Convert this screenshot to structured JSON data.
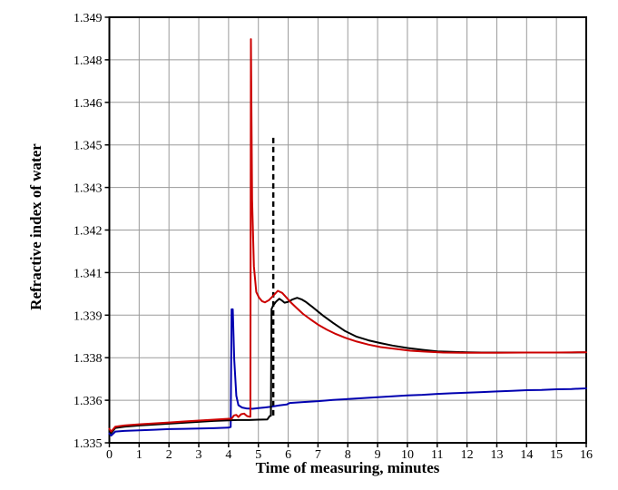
{
  "figure": {
    "background": "#ffffff"
  },
  "chart_data": {
    "type": "line",
    "title": "",
    "xlabel": "Time of measuring, minutes",
    "ylabel": "Refractive index of water",
    "xlim": [
      0,
      16
    ],
    "ylim": [
      1.335,
      1.349
    ],
    "grid": true,
    "legend": "none",
    "grid_color": "#9a9a9a",
    "frame_color": "#000000",
    "x_ticks": [
      "0",
      "1",
      "2",
      "3",
      "4",
      "5",
      "6",
      "7",
      "8",
      "9",
      "10",
      "11",
      "12",
      "13",
      "14",
      "15",
      "16"
    ],
    "y_ticks": [
      {
        "value": 1.335,
        "label": "1.335"
      },
      {
        "value": 1.3364,
        "label": "1.336"
      },
      {
        "value": 1.3378,
        "label": "1.338"
      },
      {
        "value": 1.3392,
        "label": "1.339"
      },
      {
        "value": 1.3406,
        "label": "1.341"
      },
      {
        "value": 1.342,
        "label": "1.342"
      },
      {
        "value": 1.3434,
        "label": "1.343"
      },
      {
        "value": 1.3448,
        "label": "1.345"
      },
      {
        "value": 1.3462,
        "label": "1.346"
      },
      {
        "value": 1.3476,
        "label": "1.348"
      },
      {
        "value": 1.349,
        "label": "1.349"
      }
    ],
    "annotations": [
      {
        "type": "vline",
        "style": "dashed",
        "x": 5.5,
        "y_from": 1.3359,
        "y_to": 1.3451,
        "color": "#000000"
      }
    ],
    "series": [
      {
        "name": "blue-curve",
        "color": "#0000b0",
        "points": [
          [
            0,
            1.33531
          ],
          [
            0.06,
            1.33524
          ],
          [
            0.2,
            1.33537
          ],
          [
            0.5,
            1.33539
          ],
          [
            1,
            1.33541
          ],
          [
            1.5,
            1.33543
          ],
          [
            2,
            1.33545
          ],
          [
            2.5,
            1.33546
          ],
          [
            3,
            1.33547
          ],
          [
            3.5,
            1.33548
          ],
          [
            4,
            1.3355
          ],
          [
            4.07,
            1.33552
          ],
          [
            4.1,
            1.33939
          ],
          [
            4.14,
            1.33939
          ],
          [
            4.19,
            1.33775
          ],
          [
            4.26,
            1.33655
          ],
          [
            4.33,
            1.33624
          ],
          [
            4.45,
            1.33616
          ],
          [
            4.6,
            1.33613
          ],
          [
            4.8,
            1.33612
          ],
          [
            5,
            1.33614
          ],
          [
            5.2,
            1.33616
          ],
          [
            5.45,
            1.33619
          ],
          [
            5.7,
            1.33623
          ],
          [
            5.95,
            1.33626
          ],
          [
            6.05,
            1.33631
          ],
          [
            6.5,
            1.33634
          ],
          [
            7,
            1.33637
          ],
          [
            7.5,
            1.33641
          ],
          [
            8,
            1.33644
          ],
          [
            8.5,
            1.33647
          ],
          [
            9,
            1.3365
          ],
          [
            9.5,
            1.33653
          ],
          [
            10,
            1.33656
          ],
          [
            10.5,
            1.33658
          ],
          [
            11,
            1.33661
          ],
          [
            11.5,
            1.33663
          ],
          [
            12,
            1.33665
          ],
          [
            12.5,
            1.33667
          ],
          [
            13,
            1.33669
          ],
          [
            13.5,
            1.33671
          ],
          [
            14,
            1.33673
          ],
          [
            14.5,
            1.33674
          ],
          [
            15,
            1.33676
          ],
          [
            15.5,
            1.33677
          ],
          [
            16,
            1.33679
          ]
        ]
      },
      {
        "name": "black-curve",
        "color": "#000000",
        "points": [
          [
            0,
            1.3354
          ],
          [
            0.06,
            1.33532
          ],
          [
            0.2,
            1.33549
          ],
          [
            0.5,
            1.33553
          ],
          [
            1,
            1.33557
          ],
          [
            1.5,
            1.3356
          ],
          [
            2,
            1.33563
          ],
          [
            2.5,
            1.33566
          ],
          [
            3,
            1.33569
          ],
          [
            3.5,
            1.33572
          ],
          [
            4,
            1.33574
          ],
          [
            4.3,
            1.33575
          ],
          [
            4.7,
            1.33575
          ],
          [
            5,
            1.33576
          ],
          [
            5.3,
            1.33577
          ],
          [
            5.38,
            1.33588
          ],
          [
            5.42,
            1.33589
          ],
          [
            5.44,
            1.3394
          ],
          [
            5.5,
            1.33952
          ],
          [
            5.6,
            1.33965
          ],
          [
            5.7,
            1.33974
          ],
          [
            5.78,
            1.33969
          ],
          [
            5.88,
            1.33961
          ],
          [
            6,
            1.33964
          ],
          [
            6.15,
            1.33972
          ],
          [
            6.3,
            1.33977
          ],
          [
            6.45,
            1.33972
          ],
          [
            6.6,
            1.33963
          ],
          [
            6.8,
            1.33948
          ],
          [
            7,
            1.33932
          ],
          [
            7.2,
            1.33916
          ],
          [
            7.5,
            1.33895
          ],
          [
            7.9,
            1.33868
          ],
          [
            8.3,
            1.33849
          ],
          [
            8.7,
            1.33837
          ],
          [
            9.1,
            1.33828
          ],
          [
            9.5,
            1.3382
          ],
          [
            10,
            1.33812
          ],
          [
            10.5,
            1.33806
          ],
          [
            11,
            1.33801
          ],
          [
            11.5,
            1.33799
          ],
          [
            12,
            1.33798
          ],
          [
            12.5,
            1.33797
          ],
          [
            13,
            1.33797
          ],
          [
            13.5,
            1.33797
          ],
          [
            14,
            1.33797
          ],
          [
            14.5,
            1.33797
          ],
          [
            15,
            1.33797
          ],
          [
            15.5,
            1.33797
          ],
          [
            16,
            1.33798
          ]
        ]
      },
      {
        "name": "red-curve",
        "color": "#cc0000",
        "points": [
          [
            0,
            1.33546
          ],
          [
            0.06,
            1.33537
          ],
          [
            0.2,
            1.33553
          ],
          [
            0.5,
            1.33557
          ],
          [
            1,
            1.33561
          ],
          [
            1.5,
            1.33564
          ],
          [
            2,
            1.33567
          ],
          [
            2.5,
            1.3357
          ],
          [
            3,
            1.33573
          ],
          [
            3.5,
            1.33576
          ],
          [
            4,
            1.33579
          ],
          [
            4.1,
            1.33579
          ],
          [
            4.18,
            1.3359
          ],
          [
            4.26,
            1.33592
          ],
          [
            4.33,
            1.33585
          ],
          [
            4.42,
            1.33594
          ],
          [
            4.52,
            1.33596
          ],
          [
            4.62,
            1.33588
          ],
          [
            4.7,
            1.33586
          ],
          [
            4.73,
            1.33586
          ],
          [
            4.75,
            1.34828
          ],
          [
            4.79,
            1.343
          ],
          [
            4.85,
            1.3408
          ],
          [
            4.93,
            1.33996
          ],
          [
            5.02,
            1.33978
          ],
          [
            5.12,
            1.33966
          ],
          [
            5.22,
            1.33962
          ],
          [
            5.35,
            1.33969
          ],
          [
            5.5,
            1.33984
          ],
          [
            5.65,
            1.34
          ],
          [
            5.8,
            1.33993
          ],
          [
            5.95,
            1.33977
          ],
          [
            6.1,
            1.33961
          ],
          [
            6.3,
            1.33942
          ],
          [
            6.5,
            1.33924
          ],
          [
            6.75,
            1.33906
          ],
          [
            7,
            1.33889
          ],
          [
            7.3,
            1.33872
          ],
          [
            7.6,
            1.33858
          ],
          [
            7.9,
            1.33846
          ],
          [
            8.3,
            1.33833
          ],
          [
            8.7,
            1.33823
          ],
          [
            9.1,
            1.33815
          ],
          [
            9.6,
            1.33809
          ],
          [
            10.1,
            1.33803
          ],
          [
            10.6,
            1.338
          ],
          [
            11.2,
            1.33797
          ],
          [
            12,
            1.33796
          ],
          [
            13,
            1.33796
          ],
          [
            14,
            1.33797
          ],
          [
            15,
            1.33797
          ],
          [
            16,
            1.33798
          ]
        ]
      }
    ]
  }
}
